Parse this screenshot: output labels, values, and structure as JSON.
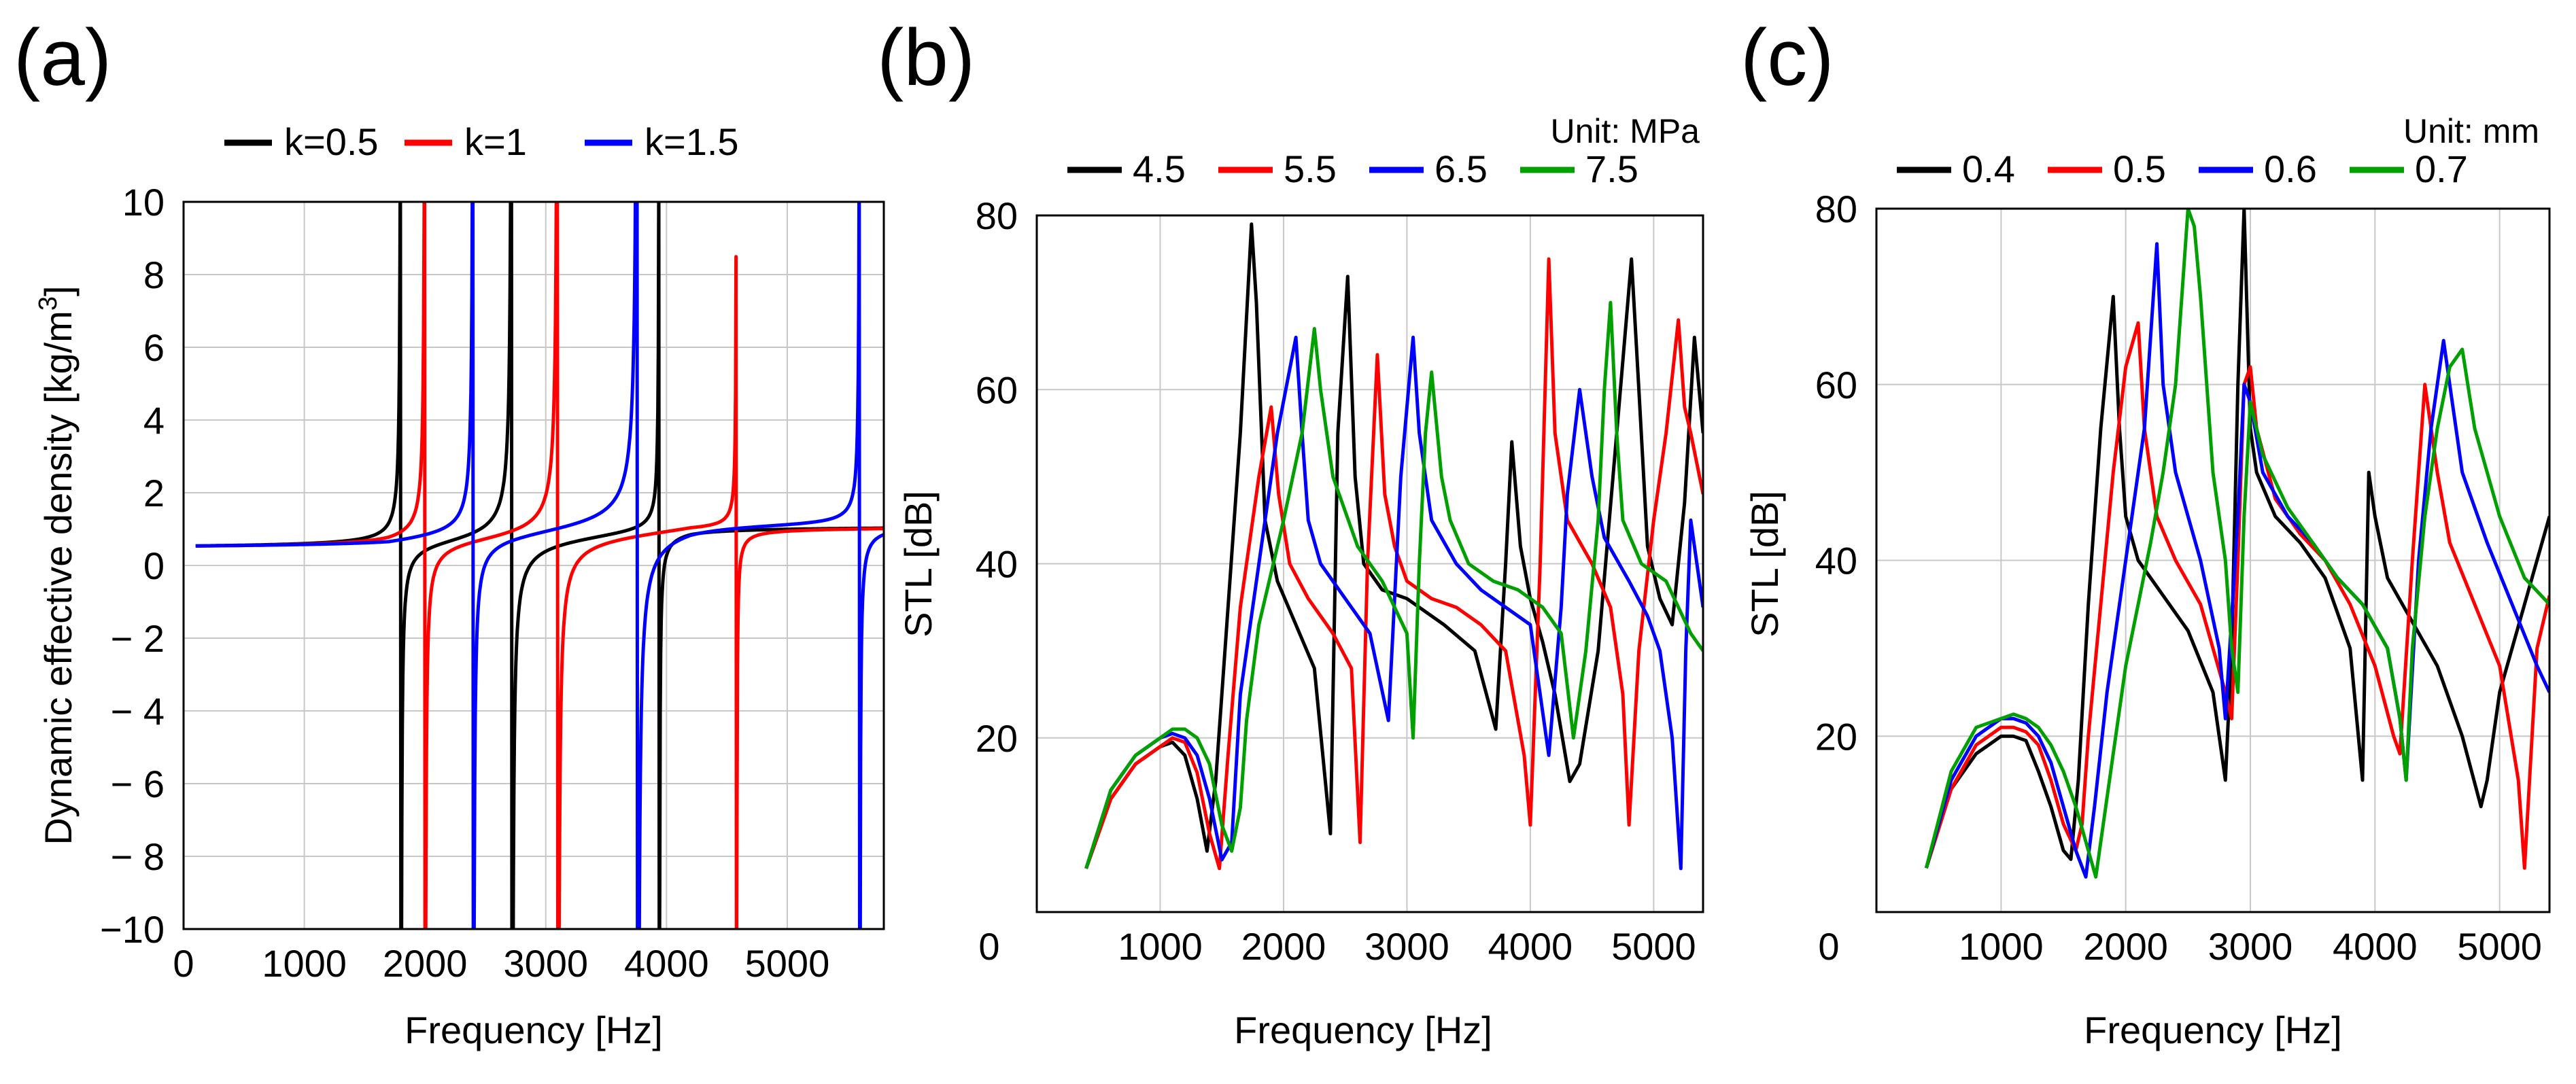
{
  "chart_data": [
    {
      "panel": "(a)",
      "type": "line",
      "title": "",
      "xlabel": "Frequency [Hz]",
      "ylabel": "Dynamic effective density [kg/m",
      "ylabel_sup": "3",
      "ylabel_end": "]",
      "xlim": [
        0,
        5800
      ],
      "ylim": [
        -10,
        10
      ],
      "xticks": [
        0,
        1000,
        2000,
        3000,
        4000,
        5000
      ],
      "xtick_labels": [
        "0",
        "1000",
        "2000",
        "3000",
        "4000",
        "5000"
      ],
      "yticks": [
        -10,
        -8,
        -6,
        -4,
        -2,
        0,
        2,
        4,
        6,
        8,
        10
      ],
      "ytick_labels": [
        "−10",
        "− 8",
        "− 6",
        "− 4",
        "− 2",
        "0",
        "2",
        "4",
        "6",
        "8",
        "10"
      ],
      "legend": {
        "position": "top",
        "unit": ""
      },
      "series": [
        {
          "name": "k=0.5",
          "color": "#000000",
          "base": 0.45,
          "high": 1.1,
          "resonances": [
            [
              1800,
              60
            ],
            [
              2720,
              110
            ],
            [
              3940,
              40
            ]
          ]
        },
        {
          "name": "k=1",
          "color": "#ff0000",
          "base": 0.45,
          "high": 1.1,
          "resonances": [
            [
              2000,
              70
            ],
            [
              3100,
              120
            ],
            [
              4580,
              30
            ]
          ]
        },
        {
          "name": "k=1.5",
          "color": "#0000ff",
          "base": 0.45,
          "high": 1.2,
          "resonances": [
            [
              2400,
              80
            ],
            [
              3760,
              160
            ],
            [
              5600,
              50
            ]
          ]
        }
      ]
    },
    {
      "panel": "(b)",
      "type": "line",
      "title": "",
      "xlabel": "Frequency [Hz]",
      "ylabel": "STL  [dB]",
      "xlim": [
        0,
        5400
      ],
      "ylim": [
        0,
        80
      ],
      "xticks": [
        0,
        1000,
        2000,
        3000,
        4000,
        5000
      ],
      "xtick_labels": [
        "0",
        "1000",
        "2000",
        "3000",
        "4000",
        "5000"
      ],
      "yticks": [
        20,
        40,
        60,
        80
      ],
      "ytick_labels": [
        "20",
        "40",
        "60",
        "80"
      ],
      "legend": {
        "position": "top",
        "unit": "Unit: MPa"
      },
      "series": [
        {
          "name": "4.5",
          "color": "#000000",
          "x": [
            400,
            600,
            800,
            1000,
            1100,
            1200,
            1300,
            1380,
            1450,
            1550,
            1650,
            1740,
            1780,
            1850,
            1950,
            2100,
            2250,
            2380,
            2440,
            2520,
            2580,
            2650,
            2800,
            3000,
            3300,
            3550,
            3720,
            3800,
            3850,
            3920,
            4000,
            4100,
            4200,
            4320,
            4400,
            4550,
            4700,
            4820,
            4880,
            4950,
            5050,
            5150,
            5250,
            5330,
            5400
          ],
          "y": [
            5,
            13,
            17,
            19,
            19.5,
            18,
            13,
            7,
            15,
            35,
            55,
            79,
            70,
            45,
            38,
            33,
            28,
            9,
            55,
            73,
            50,
            40,
            37,
            36,
            33,
            30,
            21,
            40,
            54,
            42,
            36,
            31,
            25,
            15,
            17,
            30,
            55,
            75,
            60,
            42,
            36,
            33,
            47,
            66,
            55
          ]
        },
        {
          "name": "5.5",
          "color": "#ff0000",
          "x": [
            400,
            600,
            800,
            1000,
            1100,
            1200,
            1300,
            1400,
            1480,
            1550,
            1650,
            1800,
            1900,
            1960,
            2050,
            2200,
            2400,
            2550,
            2620,
            2680,
            2760,
            2820,
            2900,
            3000,
            3200,
            3400,
            3600,
            3800,
            3950,
            4000,
            4080,
            4150,
            4200,
            4300,
            4500,
            4650,
            4750,
            4800,
            4880,
            5000,
            5100,
            5200,
            5250,
            5300,
            5400
          ],
          "y": [
            5,
            13,
            17,
            19,
            20,
            19.5,
            16,
            9,
            5,
            18,
            35,
            50,
            58,
            48,
            40,
            36,
            32,
            28,
            8,
            40,
            64,
            48,
            42,
            38,
            36,
            35,
            33,
            30,
            18,
            10,
            40,
            75,
            55,
            45,
            40,
            35,
            25,
            10,
            30,
            45,
            55,
            68,
            58,
            55,
            48
          ]
        },
        {
          "name": "6.5",
          "color": "#0000ff",
          "x": [
            400,
            600,
            800,
            1000,
            1100,
            1200,
            1300,
            1400,
            1500,
            1580,
            1650,
            1800,
            1950,
            2100,
            2150,
            2200,
            2300,
            2500,
            2700,
            2850,
            2950,
            3050,
            3100,
            3200,
            3400,
            3600,
            3800,
            4000,
            4150,
            4250,
            4300,
            4400,
            4500,
            4600,
            4800,
            4950,
            5050,
            5150,
            5220,
            5260,
            5300,
            5400
          ],
          "y": [
            5,
            14,
            18,
            20,
            20.5,
            20,
            18,
            13,
            6,
            8,
            25,
            40,
            55,
            66,
            55,
            45,
            40,
            36,
            32,
            22,
            50,
            66,
            55,
            45,
            40,
            37,
            35,
            33,
            18,
            35,
            48,
            60,
            50,
            43,
            38,
            34,
            30,
            20,
            5,
            30,
            45,
            35
          ]
        },
        {
          "name": "7.5",
          "color": "#00a000",
          "x": [
            400,
            600,
            800,
            1000,
            1100,
            1200,
            1300,
            1400,
            1500,
            1580,
            1650,
            1700,
            1800,
            2000,
            2150,
            2250,
            2300,
            2400,
            2600,
            2800,
            3000,
            3050,
            3100,
            3150,
            3200,
            3280,
            3350,
            3500,
            3700,
            3900,
            4100,
            4250,
            4350,
            4450,
            4550,
            4600,
            4650,
            4700,
            4750,
            4900,
            5100,
            5300,
            5400
          ],
          "y": [
            5,
            14,
            18,
            20,
            21,
            21,
            20,
            17,
            10,
            7,
            12,
            22,
            33,
            45,
            55,
            67,
            60,
            50,
            42,
            38,
            32,
            20,
            40,
            55,
            62,
            50,
            45,
            40,
            38,
            37,
            35,
            32,
            20,
            30,
            45,
            60,
            70,
            55,
            45,
            40,
            38,
            32,
            30
          ]
        }
      ]
    },
    {
      "panel": "(c)",
      "type": "line",
      "title": "",
      "xlabel": "Frequency [Hz]",
      "ylabel": "STL  [dB]",
      "xlim": [
        0,
        5400
      ],
      "ylim": [
        0,
        80
      ],
      "xticks": [
        0,
        1000,
        2000,
        3000,
        4000,
        5000
      ],
      "xtick_labels": [
        "0",
        "1000",
        "2000",
        "3000",
        "4000",
        "5000"
      ],
      "yticks": [
        20,
        40,
        60,
        80
      ],
      "ytick_labels": [
        "20",
        "40",
        "60",
        "80"
      ],
      "legend": {
        "position": "top",
        "unit": "Unit: mm"
      },
      "series": [
        {
          "name": "0.4",
          "color": "#000000",
          "x": [
            400,
            600,
            800,
            1000,
            1100,
            1200,
            1300,
            1400,
            1500,
            1560,
            1620,
            1700,
            1800,
            1900,
            1950,
            2000,
            2100,
            2300,
            2500,
            2700,
            2800,
            2850,
            2900,
            2950,
            3000,
            3050,
            3200,
            3400,
            3600,
            3800,
            3900,
            3950,
            4000,
            4100,
            4300,
            4500,
            4700,
            4850,
            4900,
            5000,
            5200,
            5400
          ],
          "y": [
            5,
            14,
            18,
            20,
            20,
            19.5,
            16,
            12,
            7,
            6,
            15,
            35,
            55,
            70,
            55,
            45,
            40,
            36,
            32,
            25,
            15,
            30,
            60,
            80,
            55,
            50,
            45,
            42,
            38,
            30,
            15,
            50,
            45,
            38,
            33,
            28,
            20,
            12,
            15,
            25,
            35,
            45
          ]
        },
        {
          "name": "0.5",
          "color": "#ff0000",
          "x": [
            400,
            600,
            800,
            1000,
            1100,
            1200,
            1300,
            1400,
            1500,
            1600,
            1650,
            1700,
            1800,
            1900,
            2000,
            2100,
            2150,
            2250,
            2400,
            2600,
            2800,
            2850,
            2900,
            2950,
            3000,
            3050,
            3200,
            3400,
            3600,
            3800,
            4000,
            4150,
            4200,
            4300,
            4400,
            4500,
            4600,
            4800,
            5000,
            5150,
            5200,
            5300,
            5400
          ],
          "y": [
            5,
            14,
            19,
            21,
            21,
            20.5,
            19,
            15,
            10,
            7,
            10,
            20,
            35,
            50,
            62,
            67,
            55,
            45,
            40,
            35,
            25,
            22,
            40,
            60,
            62,
            55,
            47,
            43,
            40,
            35,
            28,
            20,
            18,
            40,
            60,
            50,
            42,
            35,
            28,
            15,
            5,
            30,
            36
          ]
        },
        {
          "name": "0.6",
          "color": "#0000ff",
          "x": [
            400,
            600,
            800,
            1000,
            1100,
            1200,
            1300,
            1400,
            1500,
            1600,
            1680,
            1750,
            1850,
            2000,
            2150,
            2250,
            2300,
            2400,
            2600,
            2750,
            2800,
            2900,
            2950,
            3000,
            3100,
            3300,
            3500,
            3700,
            3900,
            4100,
            4200,
            4250,
            4350,
            4450,
            4550,
            4600,
            4700,
            4900,
            5100,
            5300,
            5400
          ],
          "y": [
            5,
            15,
            20,
            22,
            22,
            21.5,
            20,
            17,
            12,
            7,
            4,
            12,
            25,
            40,
            55,
            76,
            60,
            50,
            40,
            30,
            22,
            45,
            60,
            58,
            50,
            45,
            42,
            38,
            35,
            30,
            22,
            15,
            40,
            55,
            65,
            60,
            50,
            42,
            35,
            28,
            25
          ]
        },
        {
          "name": "0.7",
          "color": "#00a000",
          "x": [
            400,
            600,
            800,
            1000,
            1100,
            1200,
            1300,
            1400,
            1500,
            1600,
            1700,
            1760,
            1800,
            1900,
            2000,
            2100,
            2200,
            2300,
            2400,
            2450,
            2500,
            2550,
            2600,
            2700,
            2800,
            2850,
            2900,
            2950,
            3000,
            3100,
            3300,
            3500,
            3700,
            3900,
            4100,
            4200,
            4250,
            4300,
            4400,
            4500,
            4600,
            4700,
            4800,
            5000,
            5200,
            5400
          ],
          "y": [
            5,
            16,
            21,
            22,
            22.5,
            22,
            21,
            19,
            16,
            12,
            7,
            4,
            8,
            18,
            28,
            35,
            42,
            50,
            60,
            70,
            80,
            78,
            70,
            50,
            40,
            30,
            25,
            45,
            58,
            52,
            46,
            42,
            38,
            35,
            30,
            22,
            15,
            30,
            45,
            55,
            62,
            64,
            55,
            45,
            38,
            35
          ]
        }
      ]
    }
  ]
}
